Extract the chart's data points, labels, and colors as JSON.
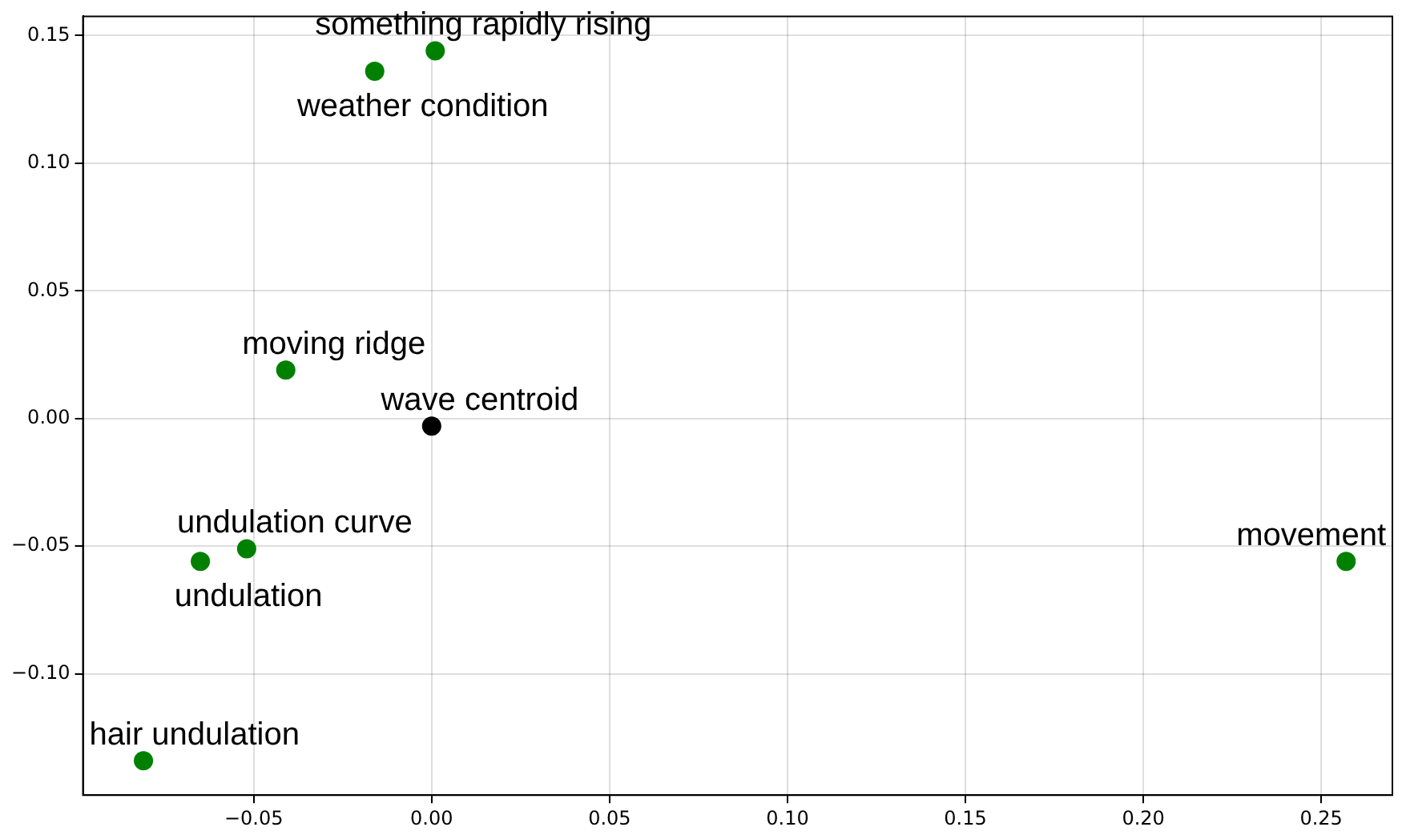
{
  "chart_data": {
    "type": "scatter",
    "marker": "circle",
    "grid": true,
    "legend": false,
    "xlim": [
      -0.098,
      0.27
    ],
    "xticks": [
      {
        "value": -0.05,
        "label": "−0.05"
      },
      {
        "value": 0,
        "label": "0.00"
      },
      {
        "value": 0.05,
        "label": "0.05"
      },
      {
        "value": 0.1,
        "label": "0.10"
      },
      {
        "value": 0.15,
        "label": "0.15"
      },
      {
        "value": 0.2,
        "label": "0.20"
      },
      {
        "value": 0.25,
        "label": "0.25"
      }
    ],
    "ylim": [
      -0.1475,
      0.1575
    ],
    "yticks": [
      {
        "value": -0.1,
        "label": "−0.10"
      },
      {
        "value": -0.05,
        "label": "−0.05"
      },
      {
        "value": 0,
        "label": "0.00"
      },
      {
        "value": 0.05,
        "label": "0.05"
      },
      {
        "value": 0.1,
        "label": "0.10"
      },
      {
        "value": 0.15,
        "label": "0.15"
      }
    ],
    "series": [
      {
        "name": "something rapidly rising",
        "color": "#008000",
        "x": [
          0.001
        ],
        "values": [
          0.144
        ]
      },
      {
        "name": "weather condition",
        "color": "#008000",
        "x": [
          -0.016
        ],
        "values": [
          0.136
        ]
      },
      {
        "name": "moving ridge",
        "color": "#008000",
        "x": [
          -0.041
        ],
        "values": [
          0.019
        ]
      },
      {
        "name": "wave centroid",
        "color": "#000000",
        "x": [
          0.0
        ],
        "values": [
          -0.003
        ]
      },
      {
        "name": "undulation curve",
        "color": "#008000",
        "x": [
          -0.052
        ],
        "values": [
          -0.051
        ]
      },
      {
        "name": "undulation",
        "color": "#008000",
        "x": [
          -0.065
        ],
        "values": [
          -0.056
        ]
      },
      {
        "name": "hair undulation",
        "color": "#008000",
        "x": [
          -0.081
        ],
        "values": [
          -0.134
        ]
      },
      {
        "name": "movement",
        "color": "#008000",
        "x": [
          0.257
        ],
        "values": [
          -0.056
        ]
      }
    ]
  }
}
